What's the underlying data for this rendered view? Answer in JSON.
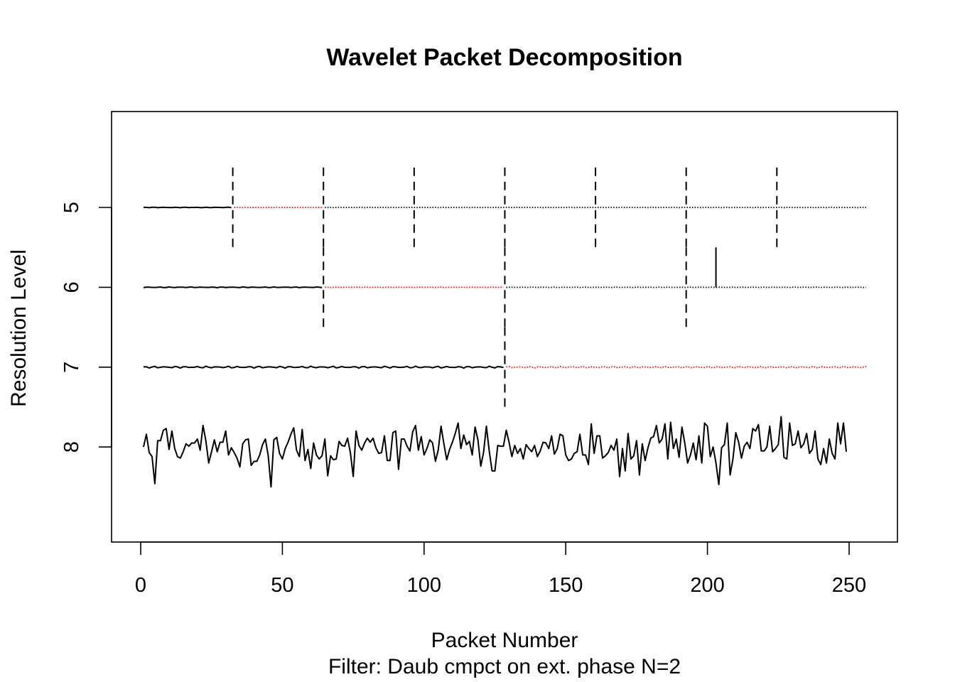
{
  "chart_data": {
    "type": "line",
    "title": "Wavelet Packet Decomposition",
    "xlabel": "Packet Number",
    "ylabel": "Resolution Level",
    "subtitle": "Filter:  Daub cmpct on ext. phase N=2",
    "xlim": [
      0,
      256
    ],
    "ylim": [
      4,
      9
    ],
    "xticks": [
      "0",
      "50",
      "100",
      "150",
      "200",
      "250"
    ],
    "xtick_values": [
      0,
      50,
      100,
      150,
      200,
      250
    ],
    "yticks": [
      "5",
      "6",
      "7",
      "8"
    ],
    "ytick_values": [
      5,
      6,
      7,
      8
    ],
    "levels": [
      {
        "level": 5,
        "packet_boundaries": [
          32,
          64,
          96,
          128,
          160,
          192,
          224
        ],
        "segments": [
          {
            "from": 0,
            "to": 32,
            "style": "solid",
            "color": "#000000",
            "amplitude": 0.004
          },
          {
            "from": 32,
            "to": 64,
            "style": "dotted",
            "color": "#ff0000",
            "amplitude": 0.003
          },
          {
            "from": 64,
            "to": 256,
            "style": "dotted",
            "color": "#000000",
            "amplitude": 0.003
          }
        ]
      },
      {
        "level": 6,
        "packet_boundaries": [
          64,
          128,
          192
        ],
        "segments": [
          {
            "from": 0,
            "to": 64,
            "style": "solid",
            "color": "#000000",
            "amplitude": 0.005
          },
          {
            "from": 64,
            "to": 128,
            "style": "dotted",
            "color": "#ff0000",
            "amplitude": 0.003
          },
          {
            "from": 128,
            "to": 256,
            "style": "dotted",
            "color": "#000000",
            "amplitude": 0.003
          }
        ],
        "spike": {
          "x": 203,
          "value": 0.5
        }
      },
      {
        "level": 7,
        "packet_boundaries": [
          128
        ],
        "segments": [
          {
            "from": 0,
            "to": 128,
            "style": "solid",
            "color": "#000000",
            "amplitude": 0.012
          },
          {
            "from": 128,
            "to": 256,
            "style": "dotted",
            "color": "#ff0000",
            "amplitude": 0.01
          }
        ]
      },
      {
        "level": 8,
        "packet_boundaries": [],
        "segments": [
          {
            "from": 1,
            "to": 256,
            "style": "solid",
            "color": "#000000",
            "amplitude": 0.3
          }
        ]
      }
    ],
    "series": [
      {
        "values": [
          0,
          0.16,
          -0.07,
          -0.12,
          -0.46,
          0.08,
          0.08,
          0.21,
          0.23,
          -0.03,
          0.2,
          -0.02,
          -0.12,
          -0.14,
          -0.06,
          0.04,
          0.01,
          0.05,
          0.05,
          0.1,
          -0.04,
          0.27,
          0.08,
          -0.2,
          -0.06,
          0.09,
          -0.06,
          0.06,
          0.06,
          0.2,
          -0.1,
          -0.01,
          -0.07,
          -0.14,
          -0.25,
          0.04,
          0.09,
          0.1,
          -0.23,
          -0.18,
          -0.18,
          -0.1,
          0.03,
          0.1,
          -0.11,
          -0.5,
          0.09,
          0.12,
          -0.08,
          -0.15,
          -0.02,
          0.06,
          0.16,
          0.24,
          -0.04,
          -0.12,
          0.22,
          -0.17,
          -0.03,
          -0.27,
          0.05,
          -0.1,
          -0.15,
          -0.11,
          0.1,
          -0.36,
          -0.11,
          -0.16,
          -0.15,
          0.07,
          0.02,
          0.01,
          0.11,
          -0.07,
          -0.37,
          0.2,
          0.02,
          -0.04,
          0.05,
          0.11,
          0.06,
          0.11,
          -0.01,
          -0.08,
          -0.07,
          0.14,
          -0.17,
          -0.17,
          0.18,
          0.2,
          -0.28,
          0.1,
          0.1,
          0.01,
          -0.05,
          0.19,
          0.27,
          -0.04,
          0.13,
          -0.1,
          -0.02,
          0.09,
          0.05,
          -0.18,
          -0.04,
          0.26,
          0.04,
          -0.16,
          -0.03,
          0.06,
          0.17,
          0.3,
          -0.02,
          0.15,
          0.03,
          0.07,
          -0.1,
          0.25,
          0.09,
          -0.24,
          -0.07,
          0.26,
          -0.05,
          -0.3,
          -0.3,
          0.02,
          0.01,
          0.01,
          0.21,
          0.06,
          -0.12,
          0.02,
          -0.08,
          -0.02,
          -0.15,
          0.03,
          -0.02,
          -0.06,
          0.02,
          -0.12,
          -0.05,
          0.06,
          0.05,
          -0.02,
          0.14,
          -0.09,
          -0.02,
          0.16,
          0.14,
          -0.1,
          -0.17,
          -0.15,
          -0.08,
          -0.06,
          0.16,
          -0.1,
          -0.1,
          -0.22,
          0.29,
          -0.08,
          0.14,
          0.14,
          -0.14,
          -0.11,
          -0.07,
          0.02,
          -0.04,
          0.1,
          -0.37,
          -0.02,
          -0.3,
          0.17,
          -0.15,
          -0.11,
          0.08,
          -0.35,
          0.04,
          -0.17,
          -0.01,
          0.11,
          0.13,
          0.27,
          0.05,
          0.1,
          0.29,
          -0.15,
          0.31,
          -0.02,
          0.1,
          -0.13,
          0.25,
          0.05,
          -0.2,
          -0.1,
          0.05,
          -0.16,
          0.14,
          -0.2,
          0.3,
          0.26,
          -0.12,
          0.0,
          -0.2,
          -0.47,
          -0.01,
          0.03,
          0.3,
          -0.35,
          -0.15,
          0.18,
          0.06,
          -0.14,
          0.01,
          0.06,
          -0.02,
          0.23,
          0.2,
          0.28,
          -0.05,
          -0.05,
          0.0,
          0.26,
          -0.06,
          -0.02,
          0.03,
          0.38,
          -0.13,
          -0.15,
          0.3,
          0.02,
          0.04,
          0.2,
          -0.01,
          0.04,
          0.17,
          -0.08,
          -0.03,
          0.2,
          -0.15,
          -0.22,
          -0.02,
          -0.2,
          0.1,
          -0.08,
          -0.15,
          0.3,
          0.04,
          0.3,
          -0.06
        ]
      }
    ]
  }
}
